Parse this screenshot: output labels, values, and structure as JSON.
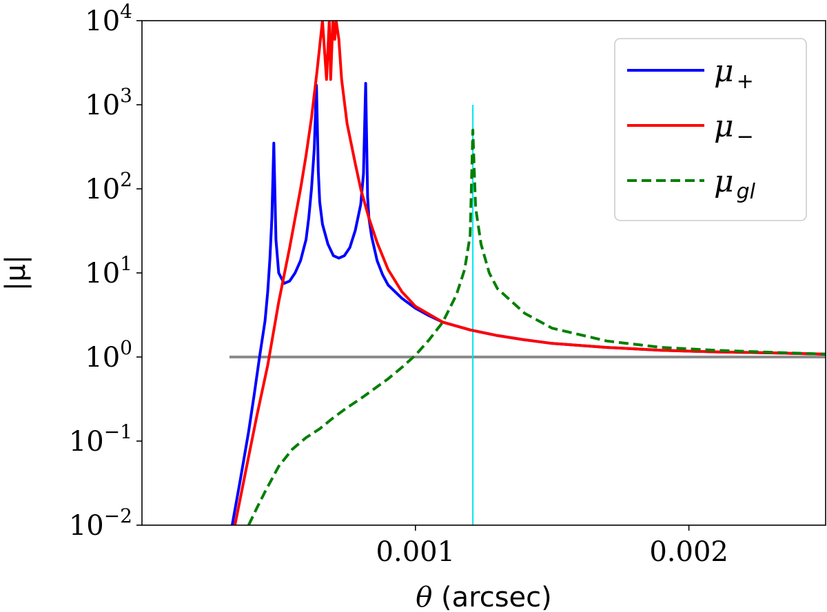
{
  "chart_data": {
    "type": "line",
    "xlabel_symbol": "θ",
    "xlabel_unit": " (arcsec)",
    "ylabel": "|μ|",
    "xlim": [
      0.0,
      0.0025
    ],
    "ylim": [
      0.01,
      10000
    ],
    "yscale": "log",
    "grid": false,
    "legend_position": "top-right",
    "xticks": [
      {
        "value": 0.001,
        "label": "0.001"
      },
      {
        "value": 0.002,
        "label": "0.002"
      }
    ],
    "yticks": [
      {
        "value": 0.01,
        "base": "10",
        "exp": "−2"
      },
      {
        "value": 0.1,
        "base": "10",
        "exp": "−1"
      },
      {
        "value": 1,
        "base": "10",
        "exp": "0"
      },
      {
        "value": 10,
        "base": "10",
        "exp": "1"
      },
      {
        "value": 100,
        "base": "10",
        "exp": "2"
      },
      {
        "value": 1000,
        "base": "10",
        "exp": "3"
      },
      {
        "value": 10000,
        "base": "10",
        "exp": "4"
      }
    ],
    "reference_lines": [
      {
        "orientation": "horizontal",
        "value": 1.0,
        "x_start": 0.00032,
        "x_end": 0.0025,
        "color": "#8c8c8c"
      },
      {
        "orientation": "vertical",
        "value": 0.00121,
        "y_start": 0.01,
        "y_end": 1000,
        "color": "#00e5ee"
      }
    ],
    "series": [
      {
        "name": "μ",
        "subscript": "+",
        "color": "#0000ff",
        "dashed": false,
        "x": [
          0.00033,
          0.00036,
          0.00039,
          0.00041,
          0.00043,
          0.00045,
          0.00046,
          0.000468,
          0.000475,
          0.000482,
          0.00049,
          0.0005,
          0.00052,
          0.00054,
          0.00056,
          0.00058,
          0.0006,
          0.00061,
          0.00062,
          0.00063,
          0.000638,
          0.000645,
          0.00065,
          0.00066,
          0.00068,
          0.0007,
          0.00072,
          0.00074,
          0.00076,
          0.00078,
          0.0008,
          0.00081,
          0.000818,
          0.000825,
          0.00083,
          0.00084,
          0.00086,
          0.00088,
          0.0009,
          0.00095,
          0.001,
          0.00105,
          0.0011,
          0.0012,
          0.0013,
          0.0014,
          0.0015,
          0.0017,
          0.0019,
          0.0021,
          0.0023,
          0.0025
        ],
        "y": [
          0.01,
          0.035,
          0.13,
          0.35,
          1.0,
          2.7,
          6.0,
          15,
          45,
          350,
          25,
          10,
          7.5,
          8.0,
          10,
          14,
          25,
          45,
          100,
          300,
          1700,
          160,
          70,
          38,
          22,
          16,
          15,
          16,
          20,
          32,
          65,
          150,
          1800,
          80,
          45,
          27,
          14,
          9.5,
          7.2,
          5.0,
          3.8,
          3.1,
          2.6,
          2.1,
          1.8,
          1.6,
          1.45,
          1.3,
          1.2,
          1.15,
          1.12,
          1.08
        ]
      },
      {
        "name": "μ",
        "subscript": "−",
        "color": "#ff0000",
        "dashed": false,
        "x": [
          0.00034,
          0.00038,
          0.00042,
          0.00046,
          0.0005,
          0.00054,
          0.00058,
          0.0006,
          0.00062,
          0.00064,
          0.00066,
          0.000675,
          0.000685,
          0.00069,
          0.000698,
          0.000705,
          0.00071,
          0.00072,
          0.00073,
          0.00075,
          0.00078,
          0.0008,
          0.00083,
          0.00086,
          0.0009,
          0.00095,
          0.001,
          0.0011,
          0.0012,
          0.0013,
          0.0014,
          0.0015,
          0.0017,
          0.0019,
          0.0021,
          0.0023,
          0.0025
        ],
        "y": [
          0.01,
          0.045,
          0.2,
          0.8,
          4.5,
          20,
          100,
          250,
          700,
          2500,
          10000,
          2000,
          10000,
          2000,
          10000,
          6000,
          10000,
          6000,
          2000,
          600,
          200,
          100,
          45,
          23,
          11,
          6.0,
          4.0,
          2.6,
          2.1,
          1.8,
          1.6,
          1.45,
          1.3,
          1.2,
          1.15,
          1.12,
          1.08
        ]
      },
      {
        "name": "μ",
        "subscript": "gl",
        "color": "#007f00",
        "dashed": true,
        "x": [
          0.00039,
          0.00042,
          0.00045,
          0.0005,
          0.00055,
          0.0006,
          0.00065,
          0.0007,
          0.00075,
          0.0008,
          0.00085,
          0.0009,
          0.00095,
          0.001,
          0.00105,
          0.0011,
          0.00115,
          0.00118,
          0.0012,
          0.00121,
          0.00122,
          0.00124,
          0.00127,
          0.0013,
          0.0014,
          0.0015,
          0.0017,
          0.0019,
          0.0021,
          0.0023,
          0.0025
        ],
        "y": [
          0.01,
          0.016,
          0.025,
          0.05,
          0.08,
          0.11,
          0.14,
          0.19,
          0.25,
          0.32,
          0.42,
          0.55,
          0.75,
          1.05,
          1.6,
          2.6,
          5.5,
          11,
          28,
          500,
          60,
          22,
          10,
          6.5,
          3.3,
          2.2,
          1.55,
          1.3,
          1.2,
          1.14,
          1.08
        ]
      }
    ]
  }
}
